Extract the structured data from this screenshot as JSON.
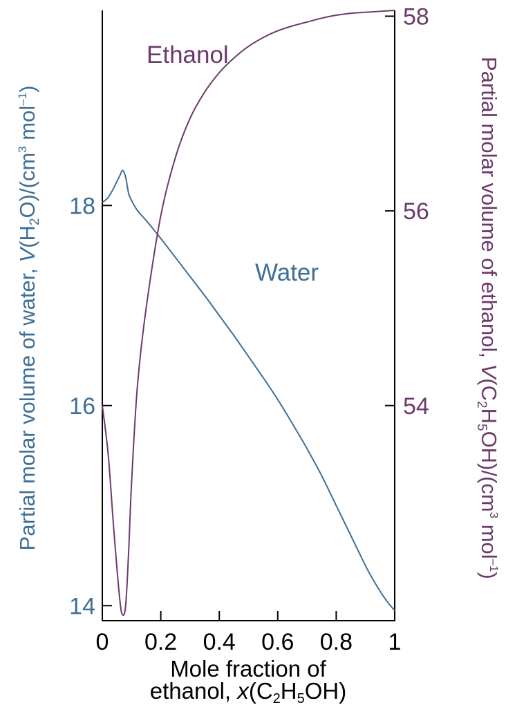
{
  "chart_data": {
    "type": "line",
    "title": "",
    "xlabel": {
      "line1": "Mole fraction of",
      "line2_prefix": "ethanol, ",
      "line2_var": "x",
      "line2_open": "(C",
      "sub1": "2",
      "mid": "H",
      "sub2": "5",
      "line2_close": "OH)"
    },
    "ylabel_left": {
      "prefix": "Partial molar volume of water, ",
      "var": "V",
      "open": "(H",
      "sub": "2",
      "mid": "O)/(cm",
      "sup1": "3",
      "unit": " mol",
      "sup2": "–1",
      "close": ")"
    },
    "ylabel_right": {
      "prefix": "Partial molar volume of ethanol, ",
      "var": "V",
      "open": "(C",
      "sub1": "2",
      "mid1": "H",
      "sub2": "5",
      "mid2": "OH)/(cm",
      "sup1": "3",
      "unit": " mol",
      "sup2": "–1",
      "close": ")"
    },
    "xlim": [
      0,
      1
    ],
    "ylim_left": [
      13.85,
      19.95
    ],
    "ylim_right": [
      51.79,
      58.06
    ],
    "x_ticks": [
      0,
      0.2,
      0.4,
      0.6,
      0.8,
      1
    ],
    "x_tick_labels": [
      "0",
      "0.2",
      "0.4",
      "0.6",
      "0.8",
      "1"
    ],
    "y_left_ticks": [
      14,
      16,
      18
    ],
    "y_left_tick_labels": [
      "14",
      "16",
      "18"
    ],
    "y_right_ticks": [
      54,
      56,
      58
    ],
    "y_right_tick_labels": [
      "54",
      "56",
      "58"
    ],
    "grid": false,
    "colors": {
      "water": "#3e6f95",
      "ethanol": "#6b3a6a",
      "axis": "#000000"
    },
    "series": [
      {
        "name": "Water",
        "axis": "left",
        "x": [
          0,
          0.02,
          0.04,
          0.06,
          0.07,
          0.08,
          0.09,
          0.1,
          0.12,
          0.15,
          0.2,
          0.25,
          0.3,
          0.35,
          0.4,
          0.45,
          0.5,
          0.55,
          0.6,
          0.65,
          0.7,
          0.75,
          0.8,
          0.85,
          0.9,
          0.93,
          0.96,
          0.98,
          1.0
        ],
        "y": [
          18.03,
          18.08,
          18.18,
          18.3,
          18.35,
          18.28,
          18.12,
          18.05,
          17.95,
          17.85,
          17.67,
          17.48,
          17.29,
          17.1,
          16.9,
          16.7,
          16.49,
          16.28,
          16.06,
          15.82,
          15.57,
          15.3,
          15.0,
          14.7,
          14.4,
          14.24,
          14.1,
          14.02,
          13.95
        ]
      },
      {
        "name": "Ethanol",
        "axis": "right",
        "x": [
          0,
          0.02,
          0.04,
          0.06,
          0.07,
          0.08,
          0.09,
          0.1,
          0.12,
          0.15,
          0.2,
          0.25,
          0.3,
          0.35,
          0.4,
          0.45,
          0.5,
          0.55,
          0.6,
          0.65,
          0.7,
          0.75,
          0.8,
          0.85,
          0.9,
          0.95,
          1.0
        ],
        "y": [
          54.0,
          53.5,
          52.7,
          52.0,
          51.85,
          51.95,
          52.5,
          53.2,
          54.2,
          55.0,
          55.95,
          56.55,
          56.95,
          57.22,
          57.42,
          57.57,
          57.69,
          57.78,
          57.85,
          57.9,
          57.94,
          57.98,
          58.01,
          58.03,
          58.04,
          58.05,
          58.06
        ]
      }
    ]
  }
}
